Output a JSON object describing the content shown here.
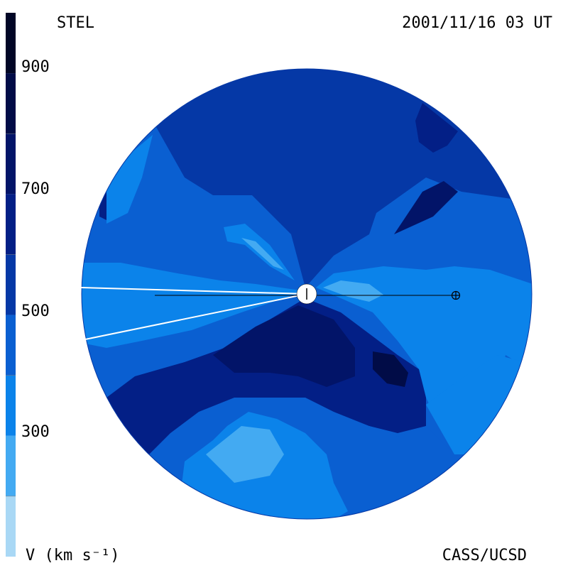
{
  "header": {
    "instrument": "STEL",
    "datetime": "2001/11/16 03 UT"
  },
  "footer": {
    "quantity_label": "V (km s⁻¹)",
    "credit": "CASS/UCSD"
  },
  "colorbar": {
    "range": [
      200,
      1100
    ],
    "ticks": [
      {
        "value": 900,
        "label": "900"
      },
      {
        "value": 700,
        "label": "700"
      },
      {
        "value": 500,
        "label": "500"
      },
      {
        "value": 300,
        "label": "300"
      }
    ],
    "bands": [
      {
        "from": 200,
        "to": 300,
        "color": "#a9d8f5"
      },
      {
        "from": 300,
        "to": 400,
        "color": "#43aaf2"
      },
      {
        "from": 400,
        "to": 500,
        "color": "#0b83ea"
      },
      {
        "from": 500,
        "to": 600,
        "color": "#0a5fd1"
      },
      {
        "from": 600,
        "to": 700,
        "color": "#0538a6"
      },
      {
        "from": 700,
        "to": 800,
        "color": "#031f86"
      },
      {
        "from": 800,
        "to": 900,
        "color": "#021468"
      },
      {
        "from": 900,
        "to": 1000,
        "color": "#010c47"
      },
      {
        "from": 1000,
        "to": 1100,
        "color": "#010626"
      }
    ]
  },
  "colors": {
    "v300": "#43aaf2",
    "v400": "#0b83ea",
    "v500": "#0a5fd1",
    "v600": "#0538a6",
    "v700": "#031f86",
    "v800": "#021468",
    "v900": "#010c47"
  }
}
